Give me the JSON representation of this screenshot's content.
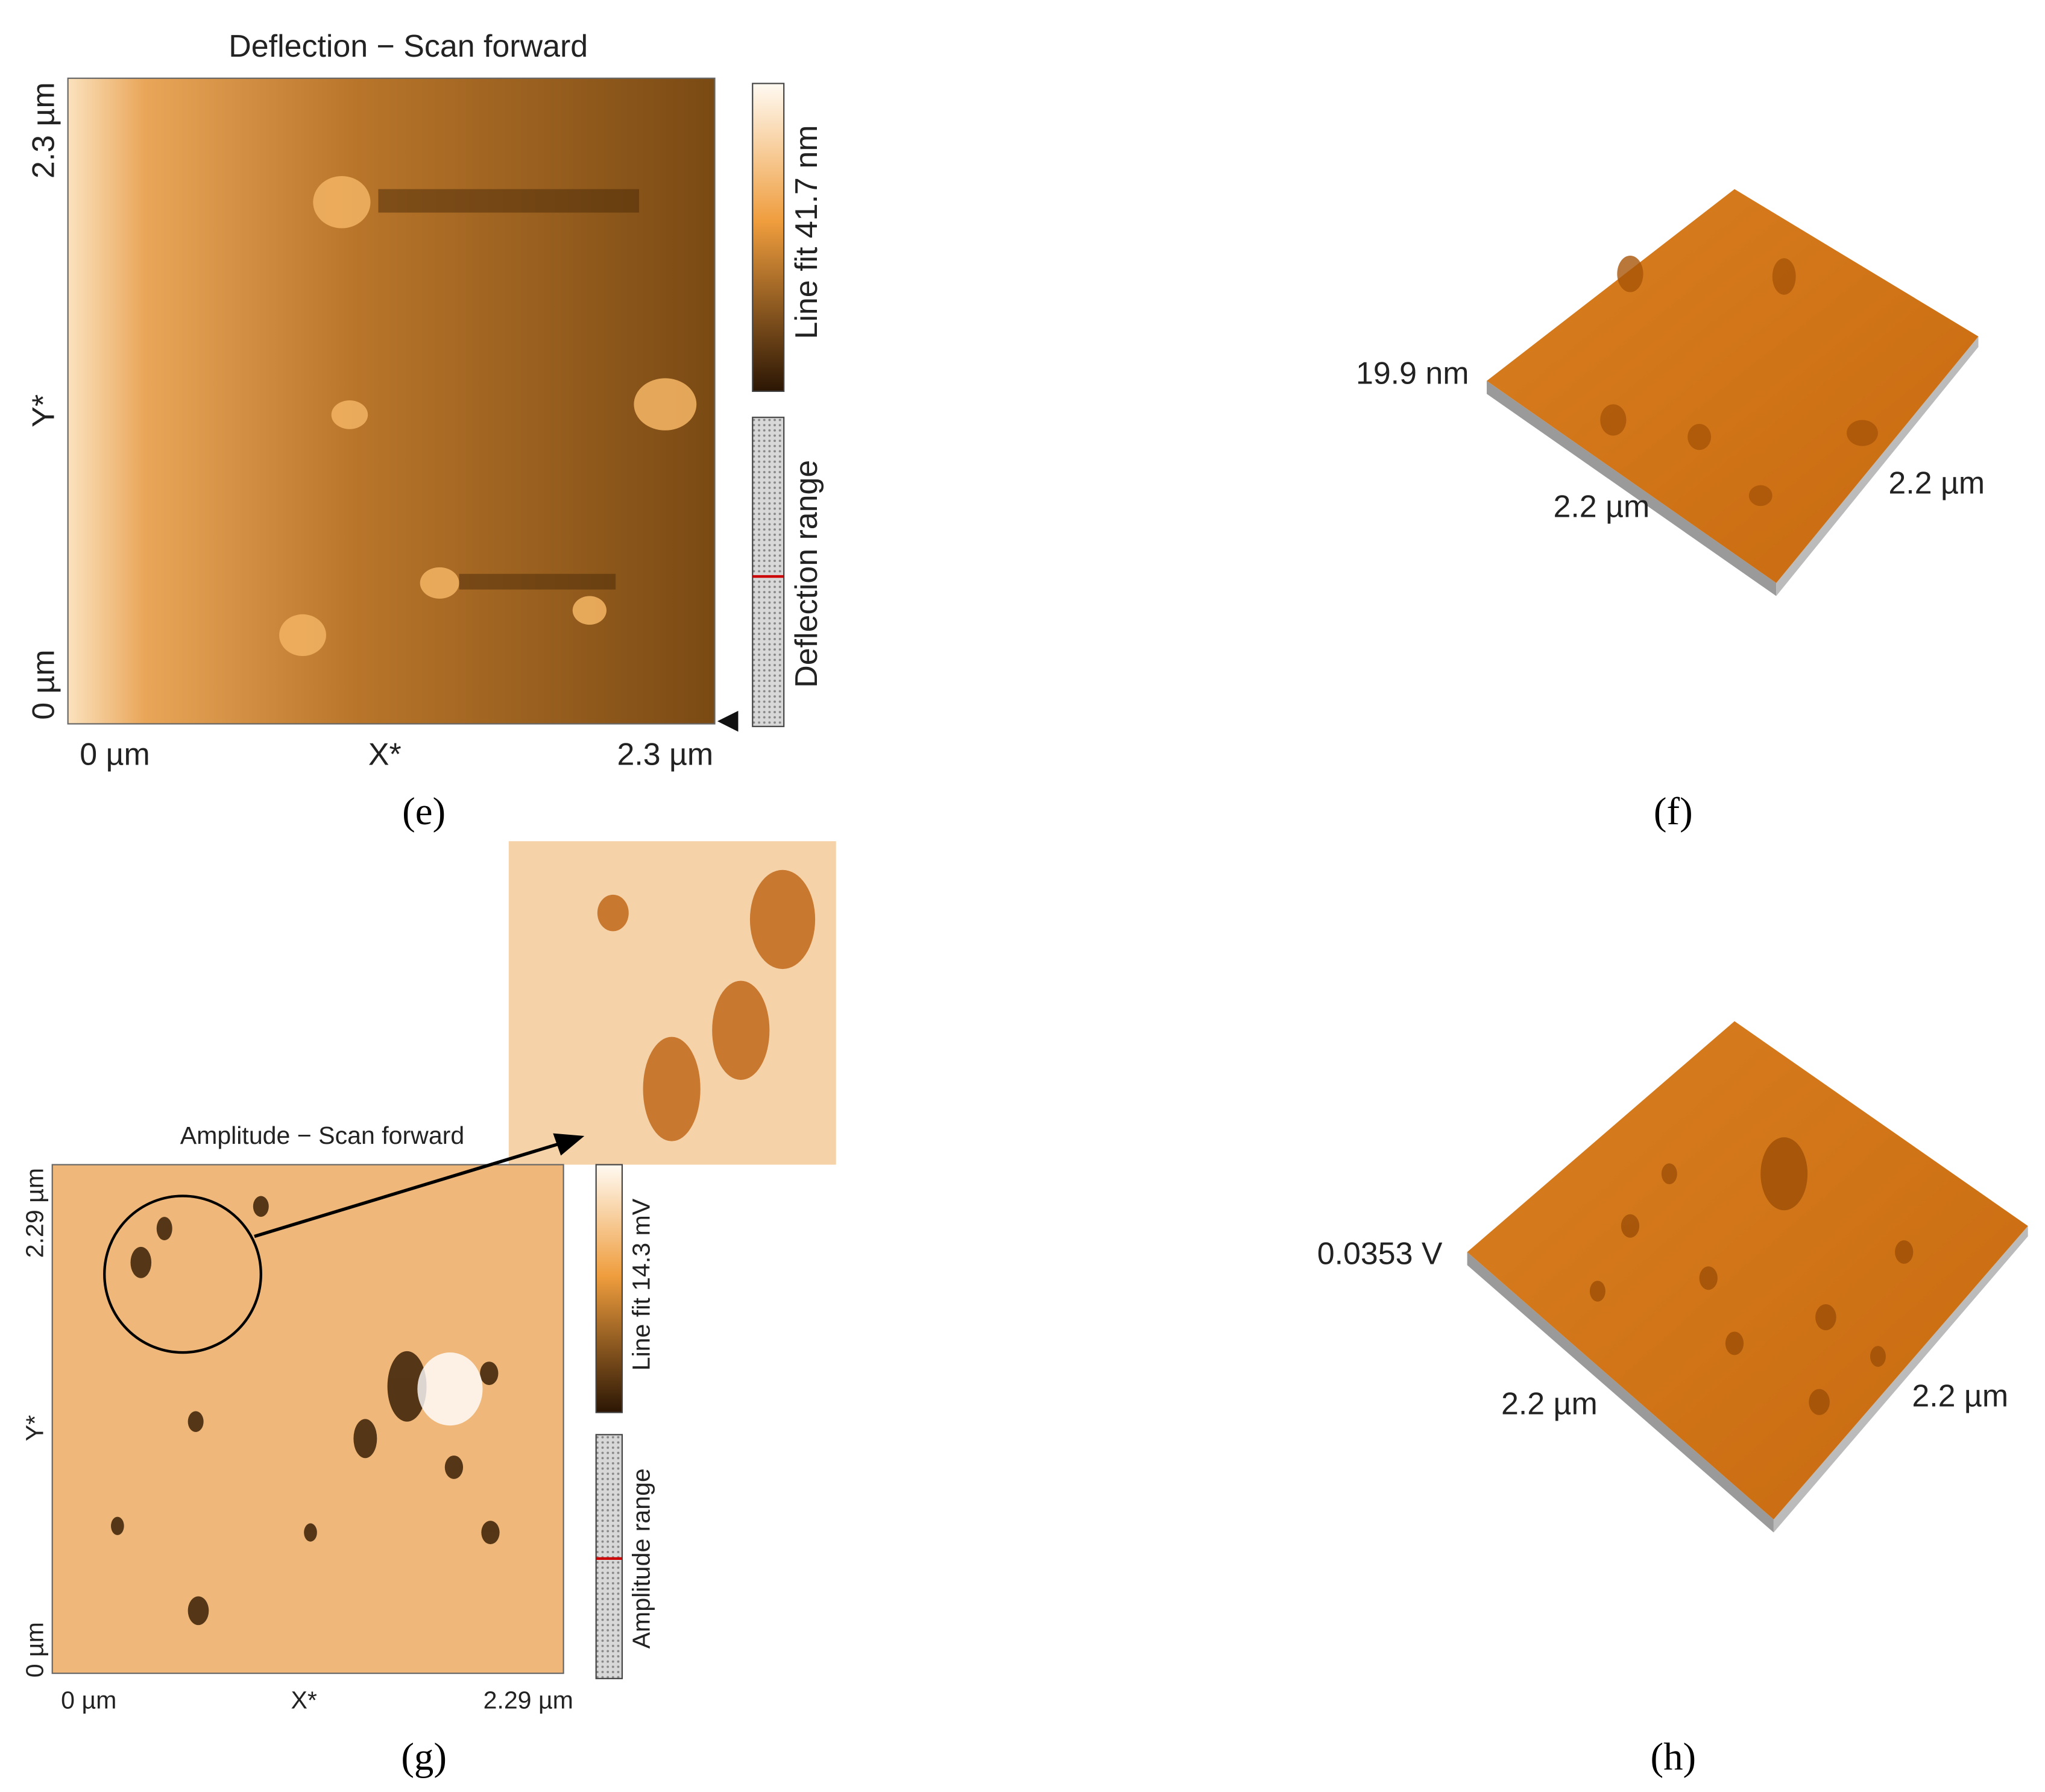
{
  "panels": [
    {
      "label": "(e)",
      "title": "Deflection − Scan forward",
      "y_ticks": [
        "2.3 µm",
        "Y*",
        "0 µm"
      ],
      "x_ticks": [
        "0 µm",
        "X*",
        "2.3 µm"
      ],
      "colorbar_label": "Line fit 41.7 nm",
      "range_label": "Deflection range"
    },
    {
      "label": "(f)",
      "z_label": "19.9 nm",
      "x_label": "2.2 µm",
      "y_label": "2.2 µm"
    },
    {
      "label": "(g)",
      "title": "Amplitude − Scan forward",
      "y_ticks": [
        "2.29 µm",
        "Y*",
        "0 µm"
      ],
      "x_ticks": [
        "0 µm",
        "X*",
        "2.29 µm"
      ],
      "colorbar_label": "Line fit 14.3 mV",
      "range_label": "Amplitude range"
    },
    {
      "label": "(h)",
      "z_label": "0.0353 V",
      "x_label": "2.2 µm",
      "y_label": "2.2 µm"
    }
  ]
}
